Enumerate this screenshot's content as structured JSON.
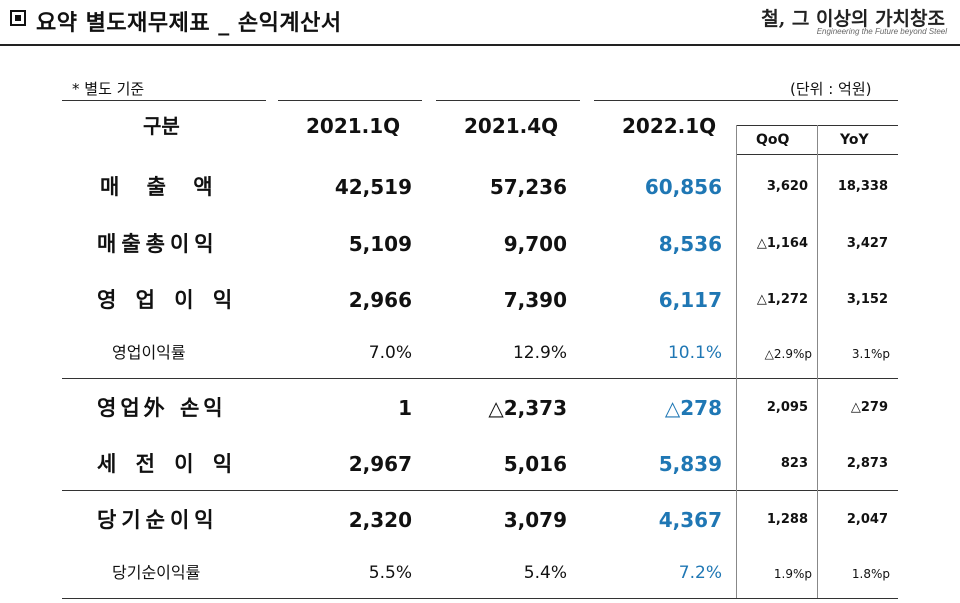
{
  "header": {
    "title": "요약 별도재무제표 _ 손익계산서",
    "logo_main": "철, 그 이상의 가치창조",
    "logo_sub": "Engineering the Future beyond Steel"
  },
  "note": "* 별도 기준",
  "unit": "(단위 : 억원)",
  "columns": {
    "category": "구분",
    "q1_2021": "2021.1Q",
    "q4_2021": "2021.4Q",
    "q1_2022": "2022.1Q",
    "qoq": "QoQ",
    "yoy": "YoY"
  },
  "colors": {
    "highlight": "#1f77b4",
    "text": "#111111"
  },
  "rows": [
    {
      "label": "매 출 액",
      "q1_2021": "42,519",
      "q4_2021": "57,236",
      "q1_2022": "60,856",
      "qoq": "3,620",
      "yoy": "18,338"
    },
    {
      "label": "매출총이익",
      "q1_2021": "5,109",
      "q4_2021": "9,700",
      "q1_2022": "8,536",
      "qoq": "△1,164",
      "yoy": "3,427"
    },
    {
      "label": "영 업 이 익",
      "q1_2021": "2,966",
      "q4_2021": "7,390",
      "q1_2022": "6,117",
      "qoq": "△1,272",
      "yoy": "3,152"
    },
    {
      "label": "영업이익률",
      "q1_2021": "7.0%",
      "q4_2021": "12.9%",
      "q1_2022": "10.1%",
      "qoq": "△2.9%p",
      "yoy": "3.1%p"
    },
    {
      "label": "영업外 손익",
      "q1_2021": "1",
      "q4_2021": "△2,373",
      "q1_2022": "△278",
      "qoq": "2,095",
      "yoy": "△279"
    },
    {
      "label": "세 전 이 익",
      "q1_2021": "2,967",
      "q4_2021": "5,016",
      "q1_2022": "5,839",
      "qoq": "823",
      "yoy": "2,873"
    },
    {
      "label": "당기순이익",
      "q1_2021": "2,320",
      "q4_2021": "3,079",
      "q1_2022": "4,367",
      "qoq": "1,288",
      "yoy": "2,047"
    },
    {
      "label": "당기순이익률",
      "q1_2021": "5.5%",
      "q4_2021": "5.4%",
      "q1_2022": "7.2%",
      "qoq": "1.9%p",
      "yoy": "1.8%p"
    }
  ]
}
